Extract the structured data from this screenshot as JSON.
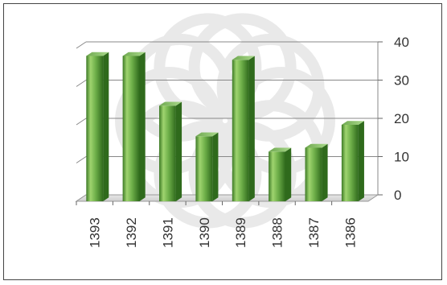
{
  "chart_data": {
    "type": "bar",
    "categories": [
      "1393",
      "1392",
      "1391",
      "1390",
      "1389",
      "1388",
      "1387",
      "1386"
    ],
    "values": [
      38,
      38,
      25,
      17,
      37,
      13,
      14,
      20
    ],
    "ylim": [
      0,
      40
    ],
    "yticks": [
      "0",
      "10",
      "20",
      "30",
      "40"
    ],
    "y_axis_side": "right",
    "grid": true,
    "style": "3d-cylinder",
    "bar_color": "#6fb04a",
    "bar_highlight": "#b8e08a",
    "bar_shadow": "#2f6a1c"
  }
}
